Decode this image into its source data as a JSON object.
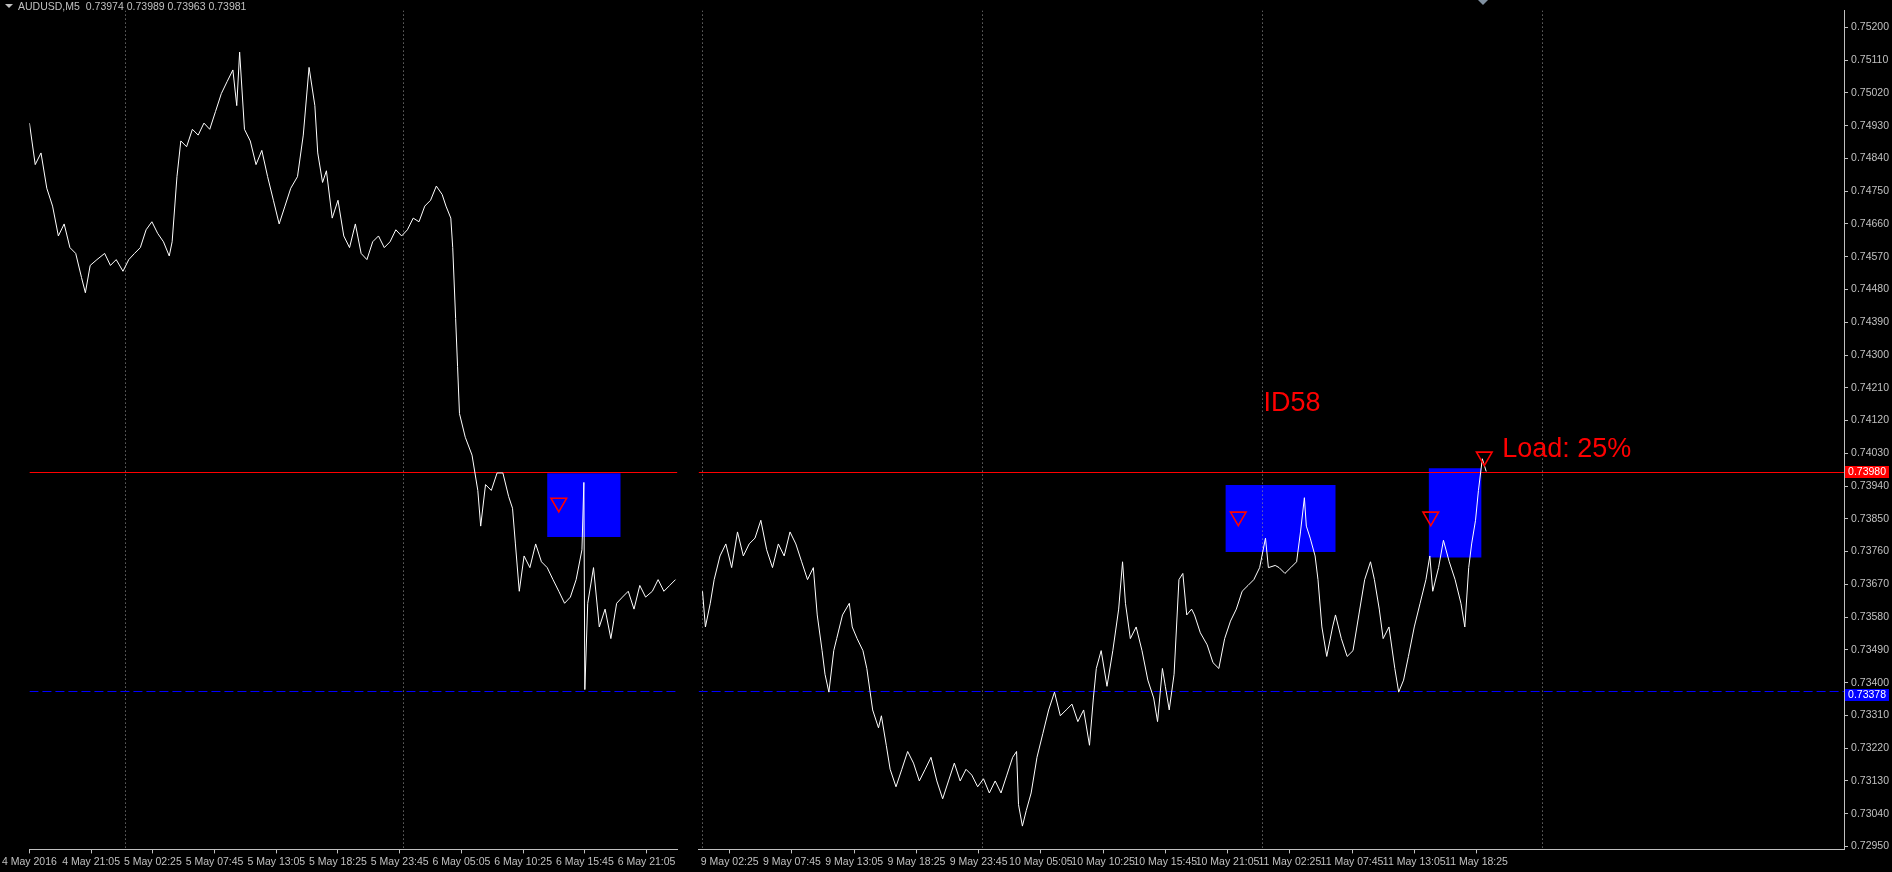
{
  "chart_data": [
    {
      "type": "line",
      "title": "AUDUSD,M5",
      "subtitle": "0.73974 0.73989 0.73963 0.73981",
      "series": [
        {
          "color": "#0000ff",
          "x": [
            "2016-05-06T12:30",
            "2016-05-06T18:50"
          ],
          "values": [
            null,
            null
          ],
          "lower": [
            0.738,
            0.738
          ],
          "upper": [
            0.73975,
            0.73975
          ]
        },
        {
          "color": "#ffffff",
          "x": [
            "2016-05-04T15:45",
            "2016-05-04T16:15",
            "2016-05-04T16:45",
            "2016-05-04T17:15",
            "2016-05-04T17:45",
            "2016-05-04T18:15",
            "2016-05-04T18:45",
            "2016-05-04T19:15",
            "2016-05-04T19:45",
            "2016-05-04T20:15",
            "2016-05-04T20:35",
            "2016-05-04T21:00",
            "2016-05-04T21:35",
            "2016-05-04T22:15",
            "2016-05-04T22:45",
            "2016-05-04T23:15",
            "2016-05-04T23:50",
            "2016-05-05T00:20",
            "2016-05-05T00:50",
            "2016-05-05T01:20",
            "2016-05-05T01:50",
            "2016-05-05T02:20",
            "2016-05-05T02:50",
            "2016-05-05T03:20",
            "2016-05-05T03:50",
            "2016-05-05T04:05",
            "2016-05-05T04:30",
            "2016-05-05T04:50",
            "2016-05-05T05:20",
            "2016-05-05T05:50",
            "2016-05-05T06:20",
            "2016-05-05T06:50",
            "2016-05-05T07:20",
            "2016-05-05T07:50",
            "2016-05-05T08:20",
            "2016-05-05T08:50",
            "2016-05-05T09:20",
            "2016-05-05T09:40",
            "2016-05-05T09:55",
            "2016-05-05T10:20",
            "2016-05-05T10:50",
            "2016-05-05T11:20",
            "2016-05-05T11:50",
            "2016-05-05T12:20",
            "2016-05-05T12:50",
            "2016-05-05T13:20",
            "2016-05-05T13:50",
            "2016-05-05T14:20",
            "2016-05-05T14:55",
            "2016-05-05T15:25",
            "2016-05-05T15:55",
            "2016-05-05T16:25",
            "2016-05-05T16:40",
            "2016-05-05T17:05",
            "2016-05-05T17:25",
            "2016-05-05T17:55",
            "2016-05-05T18:25",
            "2016-05-05T18:55",
            "2016-05-05T19:25",
            "2016-05-05T19:55",
            "2016-05-05T20:25",
            "2016-05-05T20:55",
            "2016-05-05T21:25",
            "2016-05-05T21:55",
            "2016-05-05T22:25",
            "2016-05-05T22:55",
            "2016-05-05T23:25",
            "2016-05-05T23:55",
            "2016-05-06T00:25",
            "2016-05-06T00:55",
            "2016-05-06T01:25",
            "2016-05-06T01:55",
            "2016-05-06T02:25",
            "2016-05-06T02:55",
            "2016-05-06T03:25",
            "2016-05-06T03:45",
            "2016-05-06T04:10",
            "2016-05-06T04:20",
            "2016-05-06T04:35",
            "2016-05-06T04:45",
            "2016-05-06T04:55",
            "2016-05-06T05:25",
            "2016-05-06T06:00",
            "2016-05-06T06:30",
            "2016-05-06T06:45",
            "2016-05-06T07:10",
            "2016-05-06T07:40",
            "2016-05-06T08:10",
            "2016-05-06T08:40",
            "2016-05-06T09:10",
            "2016-05-06T09:30",
            "2016-05-06T09:45",
            "2016-05-06T10:05",
            "2016-05-06T10:30",
            "2016-05-06T11:00",
            "2016-05-06T11:30",
            "2016-05-06T12:00",
            "2016-05-06T12:30",
            "2016-05-06T13:00",
            "2016-05-06T13:30",
            "2016-05-06T14:00",
            "2016-05-06T14:30",
            "2016-05-06T15:00",
            "2016-05-06T15:30",
            "2016-05-06T15:40",
            "2016-05-06T15:45",
            "2016-05-06T16:00",
            "2016-05-06T16:30",
            "2016-05-06T17:00",
            "2016-05-06T17:30",
            "2016-05-06T18:00",
            "2016-05-06T18:30",
            "2016-05-06T19:00",
            "2016-05-06T19:30",
            "2016-05-06T20:00",
            "2016-05-06T20:30",
            "2016-05-06T21:00",
            "2016-05-06T21:35",
            "2016-05-06T22:05",
            "2016-05-06T22:35",
            "2016-05-06T23:05",
            "2016-05-06T23:35"
          ],
          "values": [
            0.74937,
            0.74823,
            0.74855,
            0.74758,
            0.74709,
            0.74627,
            0.7466,
            0.74595,
            0.74579,
            0.74513,
            0.74471,
            0.74546,
            0.74562,
            0.74579,
            0.74546,
            0.74562,
            0.7453,
            0.74562,
            0.74579,
            0.74595,
            0.74644,
            0.74666,
            0.74634,
            0.74611,
            0.74572,
            0.74611,
            0.7479,
            0.74888,
            0.74872,
            0.7492,
            0.74904,
            0.74937,
            0.7492,
            0.74969,
            0.75018,
            0.75051,
            0.75083,
            0.74985,
            0.75132,
            0.7492,
            0.74888,
            0.74823,
            0.74862,
            0.7479,
            0.74725,
            0.7466,
            0.74709,
            0.74758,
            0.7479,
            0.74904,
            0.7509,
            0.74985,
            0.74855,
            0.74774,
            0.74806,
            0.74676,
            0.74725,
            0.74627,
            0.74595,
            0.7466,
            0.74579,
            0.74562,
            0.74611,
            0.74627,
            0.74595,
            0.74611,
            0.74644,
            0.74627,
            0.74644,
            0.74676,
            0.74666,
            0.74709,
            0.74725,
            0.74764,
            0.74741,
            0.74709,
            0.74676,
            0.74595,
            0.744,
            0.74269,
            0.74139,
            0.74074,
            0.74025,
            0.73928,
            0.7383,
            0.73944,
            0.73928,
            0.73976,
            0.73976,
            0.73911,
            0.73879,
            0.73781,
            0.73651,
            0.73748,
            0.73716,
            0.73781,
            0.73732,
            0.73716,
            0.73683,
            0.73651,
            0.73618,
            0.73635,
            0.73683,
            0.73765,
            0.7395,
            0.73381,
            0.73618,
            0.73716,
            0.73553,
            0.73602,
            0.73521,
            0.73618,
            0.73635,
            0.73651,
            0.73602,
            0.73667,
            0.73635,
            0.73651,
            0.73683,
            0.73651,
            0.73667,
            0.73683
          ]
        },
        {
          "type": "scatter",
          "color": "#ff0000",
          "marker": "triangle",
          "x": [
            "2016-05-06T13:30"
          ],
          "values": [
            0.73894
          ]
        }
      ],
      "xlim": [
        "2016-05-04T15:45",
        "2016-05-06T23:45"
      ],
      "xticks": [
        {
          "value": "2016-05-04T15:45",
          "label": "4 May 2016"
        },
        {
          "value": "2016-05-04T21:05",
          "label": "4 May 21:05"
        },
        {
          "value": "2016-05-05T02:25",
          "label": "5 May 02:25"
        },
        {
          "value": "2016-05-05T07:45",
          "label": "5 May 07:45"
        },
        {
          "value": "2016-05-05T13:05",
          "label": "5 May 13:05"
        },
        {
          "value": "2016-05-05T18:25",
          "label": "5 May 18:25"
        },
        {
          "value": "2016-05-05T23:45",
          "label": "5 May 23:45"
        },
        {
          "value": "2016-05-06T05:05",
          "label": "6 May 05:05"
        },
        {
          "value": "2016-05-06T10:25",
          "label": "6 May 10:25"
        },
        {
          "value": "2016-05-06T15:45",
          "label": "6 May 15:45"
        },
        {
          "value": "2016-05-06T21:05",
          "label": "6 May 21:05"
        }
      ],
      "ylim": [
        0.72942,
        0.75246
      ],
      "tick_labels": "x",
      "ref_lines": [
        {
          "axis": "x",
          "value": "2016-05-05T00:00",
          "color": "#9a9a9a",
          "line_style": "dotted"
        },
        {
          "axis": "x",
          "value": "2016-05-06T00:00",
          "color": "#9a9a9a",
          "line_style": "dotted"
        },
        {
          "axis": "y",
          "value": 0.7398,
          "color": "#ff0000",
          "line_style": "solid"
        },
        {
          "axis": "y",
          "value": 0.73378,
          "color": "#0000ff",
          "line_style": "dashed"
        }
      ],
      "grid": false,
      "legend": false
    },
    {
      "type": "line",
      "annotations": [
        {
          "text": "ID58",
          "x": "--05-11T00:00",
          "y": 0.74167
        },
        {
          "text": "Load: 25%",
          "x": "--05-11T19:05",
          "y": 0.74021
        }
      ],
      "series": [
        {
          "color": "#0000ff",
          "x": [
            "--05-10T20:55",
            "--05-11T06:20"
          ],
          "values": [
            null,
            null
          ],
          "lower": [
            0.73759,
            0.73759
          ],
          "upper": [
            0.73943,
            0.73943
          ]
        },
        {
          "color": "#0000ff",
          "x": [
            "--05-11T14:20",
            "--05-11T18:50"
          ],
          "values": [
            null,
            null
          ],
          "lower": [
            0.73744,
            0.73744
          ],
          "upper": [
            0.73989,
            0.73989
          ]
        },
        {
          "color": "#ffffff",
          "x": [
            "--05-09T00:05",
            "--05-09T00:20",
            "--05-09T00:45",
            "--05-09T01:05",
            "--05-09T01:35",
            "--05-09T02:05",
            "--05-09T02:35",
            "--05-09T03:05",
            "--05-09T03:35",
            "--05-09T04:05",
            "--05-09T04:35",
            "--05-09T05:05",
            "--05-09T05:35",
            "--05-09T06:05",
            "--05-09T06:35",
            "--05-09T07:05",
            "--05-09T07:35",
            "--05-09T08:05",
            "--05-09T08:35",
            "--05-09T09:05",
            "--05-09T09:35",
            "--05-09T09:55",
            "--05-09T10:20",
            "--05-09T10:35",
            "--05-09T10:55",
            "--05-09T11:20",
            "--05-09T11:35",
            "--05-09T12:05",
            "--05-09T12:40",
            "--05-09T12:55",
            "--05-09T13:20",
            "--05-09T13:50",
            "--05-09T14:10",
            "--05-09T14:40",
            "--05-09T15:10",
            "--05-09T15:25",
            "--05-09T15:50",
            "--05-09T16:10",
            "--05-09T16:40",
            "--05-09T17:10",
            "--05-09T17:40",
            "--05-09T18:10",
            "--05-09T18:40",
            "--05-09T19:10",
            "--05-09T19:40",
            "--05-09T20:10",
            "--05-09T20:40",
            "--05-09T21:10",
            "--05-09T21:40",
            "--05-09T22:10",
            "--05-09T22:40",
            "--05-09T23:10",
            "--05-09T23:40",
            "--05-10T00:10",
            "--05-10T00:40",
            "--05-10T01:10",
            "--05-10T01:40",
            "--05-10T02:10",
            "--05-10T02:40",
            "--05-10T03:00",
            "--05-10T03:10",
            "--05-10T03:30",
            "--05-10T03:50",
            "--05-10T04:15",
            "--05-10T04:45",
            "--05-10T05:15",
            "--05-10T05:45",
            "--05-10T06:15",
            "--05-10T06:45",
            "--05-10T07:15",
            "--05-10T07:45",
            "--05-10T08:15",
            "--05-10T08:45",
            "--05-10T09:15",
            "--05-10T09:35",
            "--05-10T09:50",
            "--05-10T10:15",
            "--05-10T10:45",
            "--05-10T11:15",
            "--05-10T11:45",
            "--05-10T12:05",
            "--05-10T12:20",
            "--05-10T12:45",
            "--05-10T13:15",
            "--05-10T13:45",
            "--05-10T14:15",
            "--05-10T14:45",
            "--05-10T15:05",
            "--05-10T15:30",
            "--05-10T15:45",
            "--05-10T16:05",
            "--05-10T16:30",
            "--05-10T16:55",
            "--05-10T17:15",
            "--05-10T17:35",
            "--05-10T18:00",
            "--05-10T18:15",
            "--05-10T18:45",
            "--05-10T19:20",
            "--05-10T19:50",
            "--05-10T20:20",
            "--05-10T20:50",
            "--05-10T21:20",
            "--05-10T21:50",
            "--05-10T22:20",
            "--05-10T22:50",
            "--05-10T23:20",
            "--05-10T23:50",
            "--05-11T00:20",
            "--05-11T00:35",
            "--05-11T01:10",
            "--05-11T01:30",
            "--05-11T02:00",
            "--05-11T02:30",
            "--05-11T03:00",
            "--05-11T03:20",
            "--05-11T03:40",
            "--05-11T03:50",
            "--05-11T04:10",
            "--05-11T04:35",
            "--05-11T04:50",
            "--05-11T05:10",
            "--05-11T05:35",
            "--05-11T06:05",
            "--05-11T06:20",
            "--05-11T06:50",
            "--05-11T07:20",
            "--05-11T07:50",
            "--05-11T08:20",
            "--05-11T08:50",
            "--05-11T09:20",
            "--05-11T09:40",
            "--05-11T10:05",
            "--05-11T10:25",
            "--05-11T10:55",
            "--05-11T11:25",
            "--05-11T11:45",
            "--05-11T12:10",
            "--05-11T12:35",
            "--05-11T13:05",
            "--05-11T13:35",
            "--05-11T14:05",
            "--05-11T14:25",
            "--05-11T14:40",
            "--05-11T15:10",
            "--05-11T15:35",
            "--05-11T16:05",
            "--05-11T16:35",
            "--05-11T17:05",
            "--05-11T17:25",
            "--05-11T17:45",
            "--05-11T18:00",
            "--05-11T18:20",
            "--05-11T18:35",
            "--05-11T18:55",
            "--05-11T19:15"
          ],
          "values": [
            0.73651,
            0.73553,
            0.73618,
            0.73683,
            0.73748,
            0.73781,
            0.73716,
            0.73814,
            0.73748,
            0.73781,
            0.73797,
            0.73846,
            0.73765,
            0.73716,
            0.73781,
            0.73748,
            0.73814,
            0.73781,
            0.73732,
            0.73683,
            0.73716,
            0.73586,
            0.73488,
            0.73423,
            0.73374,
            0.73488,
            0.73521,
            0.73586,
            0.73618,
            0.73553,
            0.73521,
            0.73488,
            0.73439,
            0.73325,
            0.73276,
            0.73309,
            0.73228,
            0.73162,
            0.73114,
            0.73162,
            0.73211,
            0.73179,
            0.7313,
            0.73162,
            0.73195,
            0.7313,
            0.73081,
            0.7313,
            0.73179,
            0.7313,
            0.73162,
            0.73146,
            0.73114,
            0.73136,
            0.73097,
            0.7313,
            0.73097,
            0.73146,
            0.73195,
            0.73211,
            0.73065,
            0.73006,
            0.73049,
            0.73097,
            0.73195,
            0.7326,
            0.73325,
            0.73374,
            0.73309,
            0.73325,
            0.73341,
            0.73293,
            0.73325,
            0.73228,
            0.73358,
            0.73439,
            0.73488,
            0.7339,
            0.73488,
            0.73602,
            0.73732,
            0.73618,
            0.73521,
            0.73553,
            0.73488,
            0.73407,
            0.73358,
            0.73293,
            0.73439,
            0.7339,
            0.73325,
            0.73423,
            0.73683,
            0.737,
            0.73586,
            0.73602,
            0.73586,
            0.73537,
            0.73504,
            0.73455,
            0.73439,
            0.73521,
            0.73569,
            0.73602,
            0.73651,
            0.73667,
            0.73683,
            0.73716,
            0.73797,
            0.73716,
            0.73722,
            0.73716,
            0.737,
            0.73716,
            0.73732,
            0.73814,
            0.73908,
            0.7383,
            0.73797,
            0.73748,
            0.73683,
            0.73553,
            0.73472,
            0.73553,
            0.73586,
            0.73521,
            0.73472,
            0.73488,
            0.73586,
            0.73683,
            0.73732,
            0.73683,
            0.73602,
            0.73521,
            0.73553,
            0.73439,
            0.73374,
            0.73407,
            0.73472,
            0.73553,
            0.73618,
            0.73683,
            0.73748,
            0.73651,
            0.73716,
            0.73791,
            0.73732,
            0.73683,
            0.73618,
            0.73553,
            0.73716,
            0.73781,
            0.73846,
            0.73928,
            0.74015,
            0.7398
          ]
        },
        {
          "type": "scatter",
          "color": "#ff0000",
          "marker": "triangle",
          "x": [
            "--05-10T22:00",
            "--05-11T14:30",
            "--05-11T19:05"
          ],
          "values": [
            0.73856,
            0.73856,
            0.74021
          ]
        }
      ],
      "xlim": [
        "--05-08T23:45",
        "--05-13T01:55"
      ],
      "xticks": [
        {
          "value": "--05-09T02:25",
          "label": "9 May 02:25"
        },
        {
          "value": "--05-09T07:45",
          "label": "9 May 07:45"
        },
        {
          "value": "--05-09T13:05",
          "label": "9 May 13:05"
        },
        {
          "value": "--05-09T18:25",
          "label": "9 May 18:25"
        },
        {
          "value": "--05-09T23:45",
          "label": "9 May 23:45"
        },
        {
          "value": "--05-10T05:05",
          "label": "10 May 05:05"
        },
        {
          "value": "--05-10T10:25",
          "label": "10 May 10:25"
        },
        {
          "value": "--05-10T15:45",
          "label": "10 May 15:45"
        },
        {
          "value": "--05-10T21:05",
          "label": "10 May 21:05"
        },
        {
          "value": "--05-11T02:25",
          "label": "11 May 02:25"
        },
        {
          "value": "--05-11T07:45",
          "label": "11 May 07:45"
        },
        {
          "value": "--05-11T13:05",
          "label": "11 May 13:05"
        },
        {
          "value": "--05-11T18:25",
          "label": "11 May 18:25"
        }
      ],
      "ylim": [
        0.72942,
        0.75246
      ],
      "yticks": [
        {
          "value": 0.7295,
          "label": "0.72950"
        },
        {
          "value": 0.7304,
          "label": "0.73040"
        },
        {
          "value": 0.7313,
          "label": "0.73130"
        },
        {
          "value": 0.7322,
          "label": "0.73220"
        },
        {
          "value": 0.7331,
          "label": "0.73310"
        },
        {
          "value": 0.734,
          "label": "0.73400"
        },
        {
          "value": 0.7349,
          "label": "0.73490"
        },
        {
          "value": 0.7358,
          "label": "0.73580"
        },
        {
          "value": 0.7367,
          "label": "0.73670"
        },
        {
          "value": 0.7376,
          "label": "0.73760"
        },
        {
          "value": 0.7385,
          "label": "0.73850"
        },
        {
          "value": 0.7394,
          "label": "0.73940"
        },
        {
          "value": 0.7403,
          "label": "0.74030"
        },
        {
          "value": 0.7412,
          "label": "0.74120"
        },
        {
          "value": 0.7421,
          "label": "0.74210"
        },
        {
          "value": 0.743,
          "label": "0.74300"
        },
        {
          "value": 0.7439,
          "label": "0.74390"
        },
        {
          "value": 0.7448,
          "label": "0.74480"
        },
        {
          "value": 0.7457,
          "label": "0.74570"
        },
        {
          "value": 0.7466,
          "label": "0.74660"
        },
        {
          "value": 0.7475,
          "label": "0.74750"
        },
        {
          "value": 0.7484,
          "label": "0.74840"
        },
        {
          "value": 0.7493,
          "label": "0.74930"
        },
        {
          "value": 0.7502,
          "label": "0.75020"
        },
        {
          "value": 0.7511,
          "label": "0.75110"
        },
        {
          "value": 0.752,
          "label": "0.75200"
        }
      ],
      "ref_lines": [
        {
          "axis": "x",
          "value": "--05-09T00:00",
          "color": "#9a9a9a",
          "line_style": "dotted"
        },
        {
          "axis": "x",
          "value": "--05-10T00:00",
          "color": "#9a9a9a",
          "line_style": "dotted"
        },
        {
          "axis": "x",
          "value": "--05-11T00:00",
          "color": "#9a9a9a",
          "line_style": "dotted"
        },
        {
          "axis": "x",
          "value": "--05-12T00:00",
          "color": "#9a9a9a",
          "line_style": "dotted"
        },
        {
          "axis": "y",
          "value": 0.7398,
          "label": "0.73980",
          "color": "#ff0000",
          "line_style": "solid"
        },
        {
          "axis": "y",
          "value": 0.73378,
          "label": "0.73378",
          "color": "#0000ff",
          "line_style": "dashed"
        }
      ],
      "grid": false,
      "legend": false
    }
  ]
}
